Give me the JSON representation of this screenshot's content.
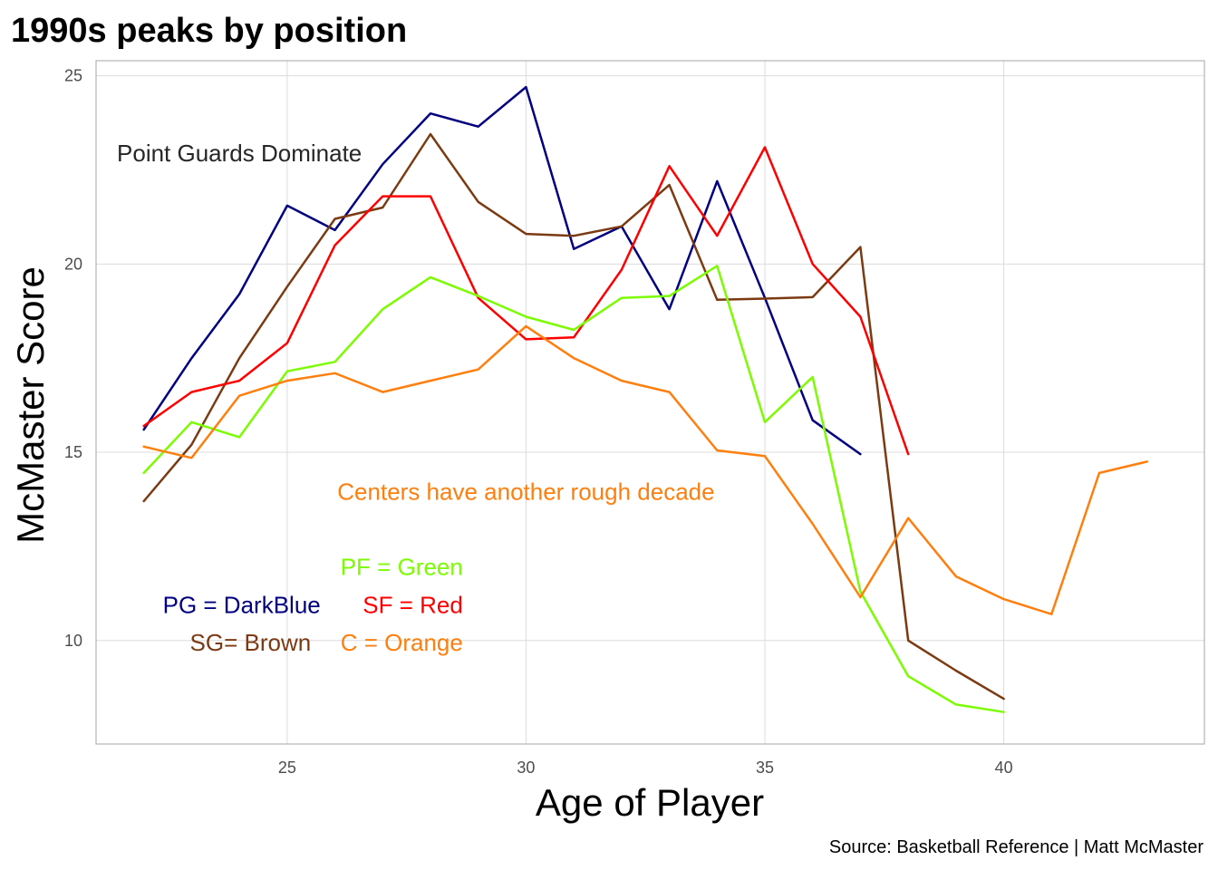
{
  "chart_data": {
    "type": "line",
    "title": "1990s peaks by position",
    "xlabel": "Age of Player",
    "ylabel": "McMaster Score",
    "caption": "Source: Basketball Reference | Matt McMaster",
    "xlim": [
      21,
      44.2
    ],
    "ylim": [
      7.25,
      25.4
    ],
    "xticks": [
      25,
      30,
      35,
      40
    ],
    "yticks": [
      10,
      15,
      20,
      25
    ],
    "grid": true,
    "legend": "none",
    "series": [
      {
        "key": "pg",
        "color": "#000080",
        "x": [
          22,
          23,
          24,
          25,
          26,
          27,
          28,
          29,
          30,
          31,
          32,
          33,
          34,
          35,
          36,
          37
        ],
        "y": [
          15.6,
          17.5,
          19.2,
          21.55,
          20.9,
          22.65,
          24.0,
          23.65,
          24.7,
          20.4,
          21.0,
          18.8,
          22.2,
          19.1,
          15.85,
          14.95
        ]
      },
      {
        "key": "sg",
        "color": "#7B3A12",
        "x": [
          22,
          23,
          24,
          25,
          26,
          27,
          28,
          29,
          30,
          31,
          32,
          33,
          34,
          35,
          36,
          37,
          38,
          39,
          40
        ],
        "y": [
          13.7,
          15.2,
          17.5,
          19.4,
          21.2,
          21.5,
          23.45,
          21.65,
          20.8,
          20.75,
          21.0,
          22.1,
          19.05,
          19.08,
          19.12,
          20.45,
          10.0,
          9.2,
          8.45
        ]
      },
      {
        "key": "sf",
        "color": "#FF0000",
        "x": [
          22,
          23,
          24,
          25,
          26,
          27,
          28,
          29,
          30,
          31,
          32,
          33,
          34,
          35,
          36,
          37,
          38
        ],
        "y": [
          15.7,
          16.6,
          16.9,
          17.9,
          20.5,
          21.8,
          21.8,
          19.1,
          18.0,
          18.05,
          19.85,
          22.6,
          20.75,
          23.1,
          20.0,
          18.6,
          14.95
        ]
      },
      {
        "key": "pf",
        "color": "#7CFC00",
        "x": [
          22,
          23,
          24,
          25,
          26,
          27,
          28,
          29,
          30,
          31,
          32,
          33,
          34,
          35,
          36,
          37,
          38,
          39,
          40
        ],
        "y": [
          14.45,
          15.8,
          15.4,
          17.15,
          17.4,
          18.8,
          19.65,
          19.15,
          18.6,
          18.25,
          19.1,
          19.15,
          19.95,
          15.8,
          17.0,
          11.3,
          9.05,
          8.3,
          8.1
        ]
      },
      {
        "key": "c",
        "color": "#FF7F0E",
        "x": [
          22,
          23,
          24,
          25,
          26,
          27,
          28,
          29,
          30,
          31,
          32,
          33,
          34,
          35,
          36,
          37,
          38,
          39,
          40,
          41,
          42,
          43
        ],
        "y": [
          15.15,
          14.85,
          16.5,
          16.9,
          17.1,
          16.6,
          16.9,
          17.2,
          18.35,
          17.5,
          16.9,
          16.6,
          15.05,
          14.9,
          13.1,
          11.15,
          13.25,
          11.7,
          11.1,
          10.7,
          14.45,
          14.75
        ]
      }
    ],
    "annotations": [
      {
        "text": "Point Guards Dominate",
        "x": 24,
        "y": 22.95,
        "color": "#262626",
        "anchor": "middle"
      },
      {
        "text": "Centers have another rough decade",
        "x": 30,
        "y": 13.95,
        "color": "#FF7F0E",
        "anchor": "middle"
      },
      {
        "text": "PF = Green",
        "x": 28.68,
        "y": 11.95,
        "color": "#7CFC00",
        "anchor": "end"
      },
      {
        "text": "PG = DarkBlue",
        "x": 25.7,
        "y": 10.95,
        "color": "#000080",
        "anchor": "end"
      },
      {
        "text": "SF = Red",
        "x": 28.68,
        "y": 10.95,
        "color": "#FF0000",
        "anchor": "end"
      },
      {
        "text": "SG= Brown",
        "x": 25.5,
        "y": 9.95,
        "color": "#7B3A12",
        "anchor": "end"
      },
      {
        "text": "C = Orange",
        "x": 28.68,
        "y": 9.95,
        "color": "#FF7F0E",
        "anchor": "end"
      }
    ]
  }
}
